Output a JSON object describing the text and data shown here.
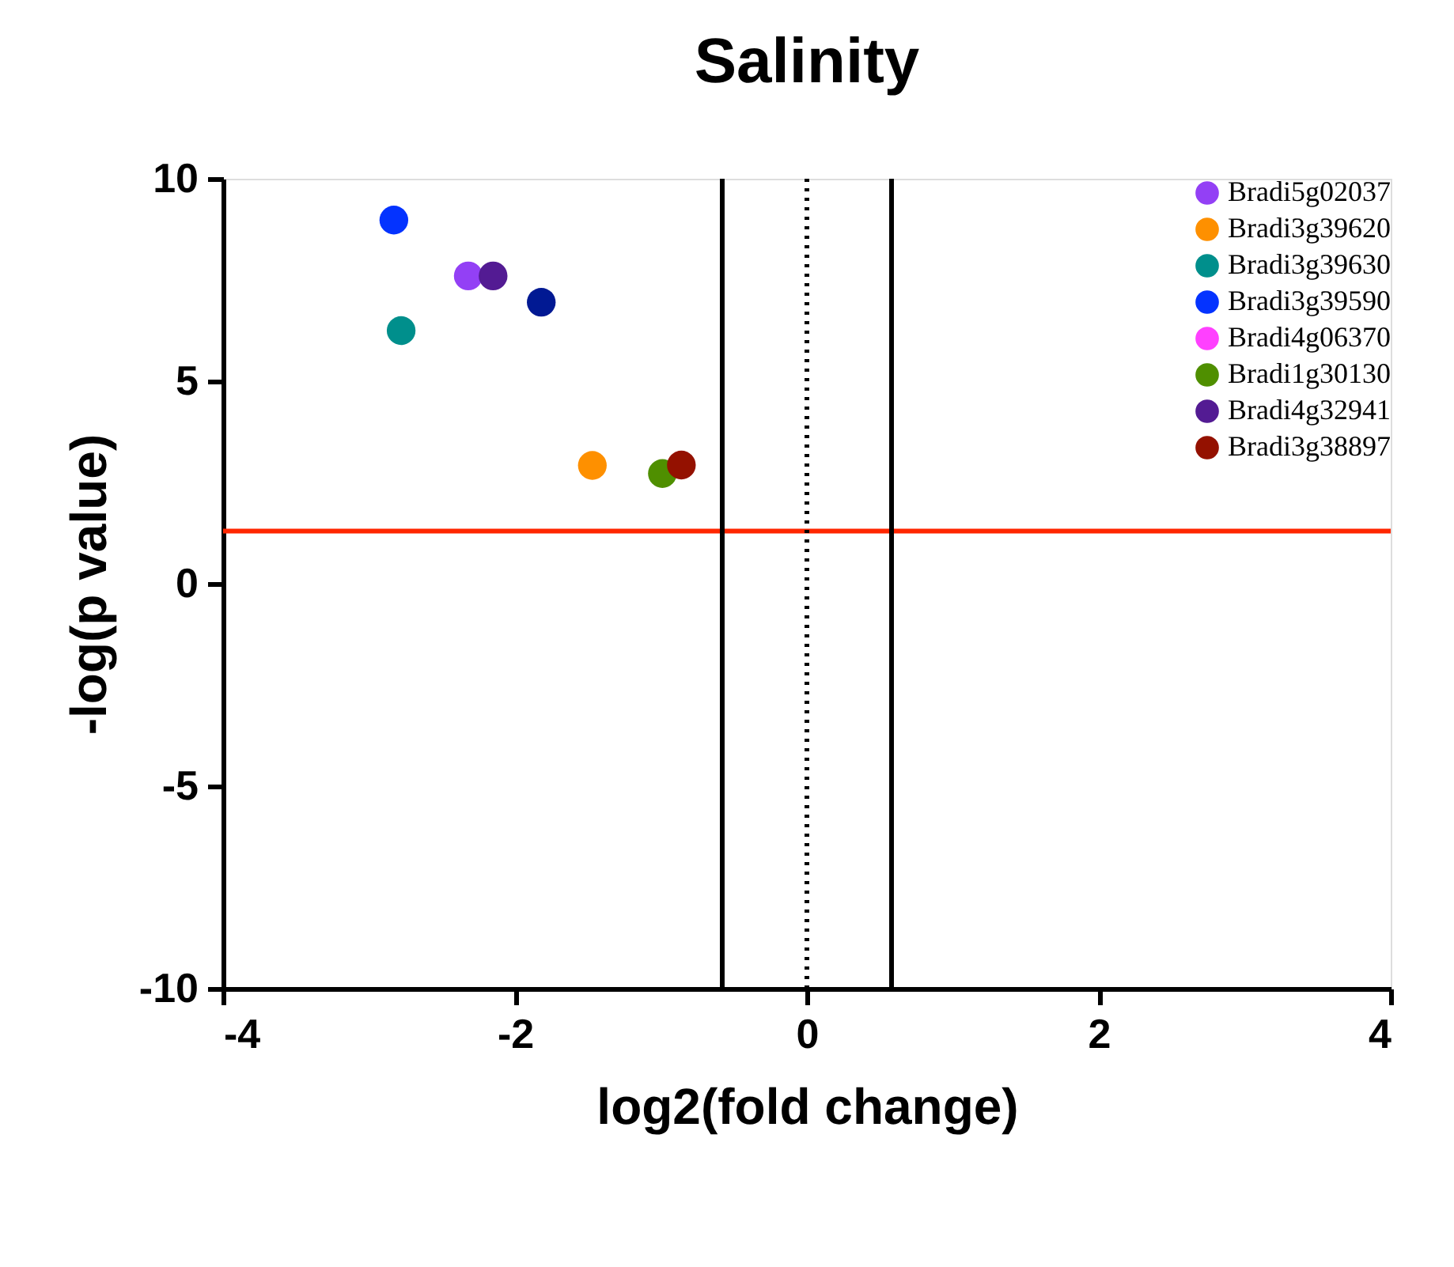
{
  "chart_data": {
    "type": "scatter",
    "title": "Salinity",
    "xlabel": "log2(fold change)",
    "ylabel": "-log(p value)",
    "xlim": [
      -4,
      4
    ],
    "xticks": [
      -4,
      -2,
      0,
      2,
      4
    ],
    "ylim": [
      -10,
      10
    ],
    "yticks": [
      -10,
      -5,
      0,
      5,
      10
    ],
    "grid": false,
    "legend": "top right",
    "marker": "circle",
    "series": [
      {
        "name": "Bradi5g02037",
        "color": "#9340f5",
        "x": [
          -2.32
        ],
        "values": [
          7.6
        ]
      },
      {
        "name": "Bradi3g39620",
        "color": "#fe9000",
        "x": [
          -1.47
        ],
        "values": [
          2.92
        ]
      },
      {
        "name": "Bradi3g39630",
        "color": "#008f8c",
        "x": [
          -2.78
        ],
        "values": [
          6.25
        ]
      },
      {
        "name": "Bradi3g39590",
        "color": "#0433ff",
        "x": [
          -2.83
        ],
        "values": [
          8.98
        ]
      },
      {
        "name": "Bradi4g06370",
        "color": "#ff40ff",
        "x": [
          null
        ],
        "values": [
          null
        ]
      },
      {
        "name": "Bradi1g30130",
        "color": "#4f8f00",
        "x": [
          -0.99
        ],
        "values": [
          2.72
        ]
      },
      {
        "name": "Bradi4g32941",
        "color": "#531b93",
        "x": [
          -2.15
        ],
        "values": [
          7.6
        ]
      },
      {
        "name": "Bradi3g38897",
        "color": "#941100",
        "x": [
          -0.86
        ],
        "values": [
          2.93
        ]
      },
      {
        "color": "#011993",
        "x": [
          -1.82
        ],
        "values": [
          6.95
        ]
      }
    ],
    "ref_lines": [
      {
        "axis": "y",
        "value": 1.3,
        "color": "#ff2600",
        "line_style": "solid"
      },
      {
        "axis": "x",
        "value": -0.58,
        "color": "#000000",
        "line_style": "solid"
      },
      {
        "axis": "x",
        "value": 0.58,
        "color": "#000000",
        "line_style": "solid"
      },
      {
        "axis": "x",
        "value": 0,
        "color": "#000000",
        "line_style": "dotted"
      }
    ]
  }
}
